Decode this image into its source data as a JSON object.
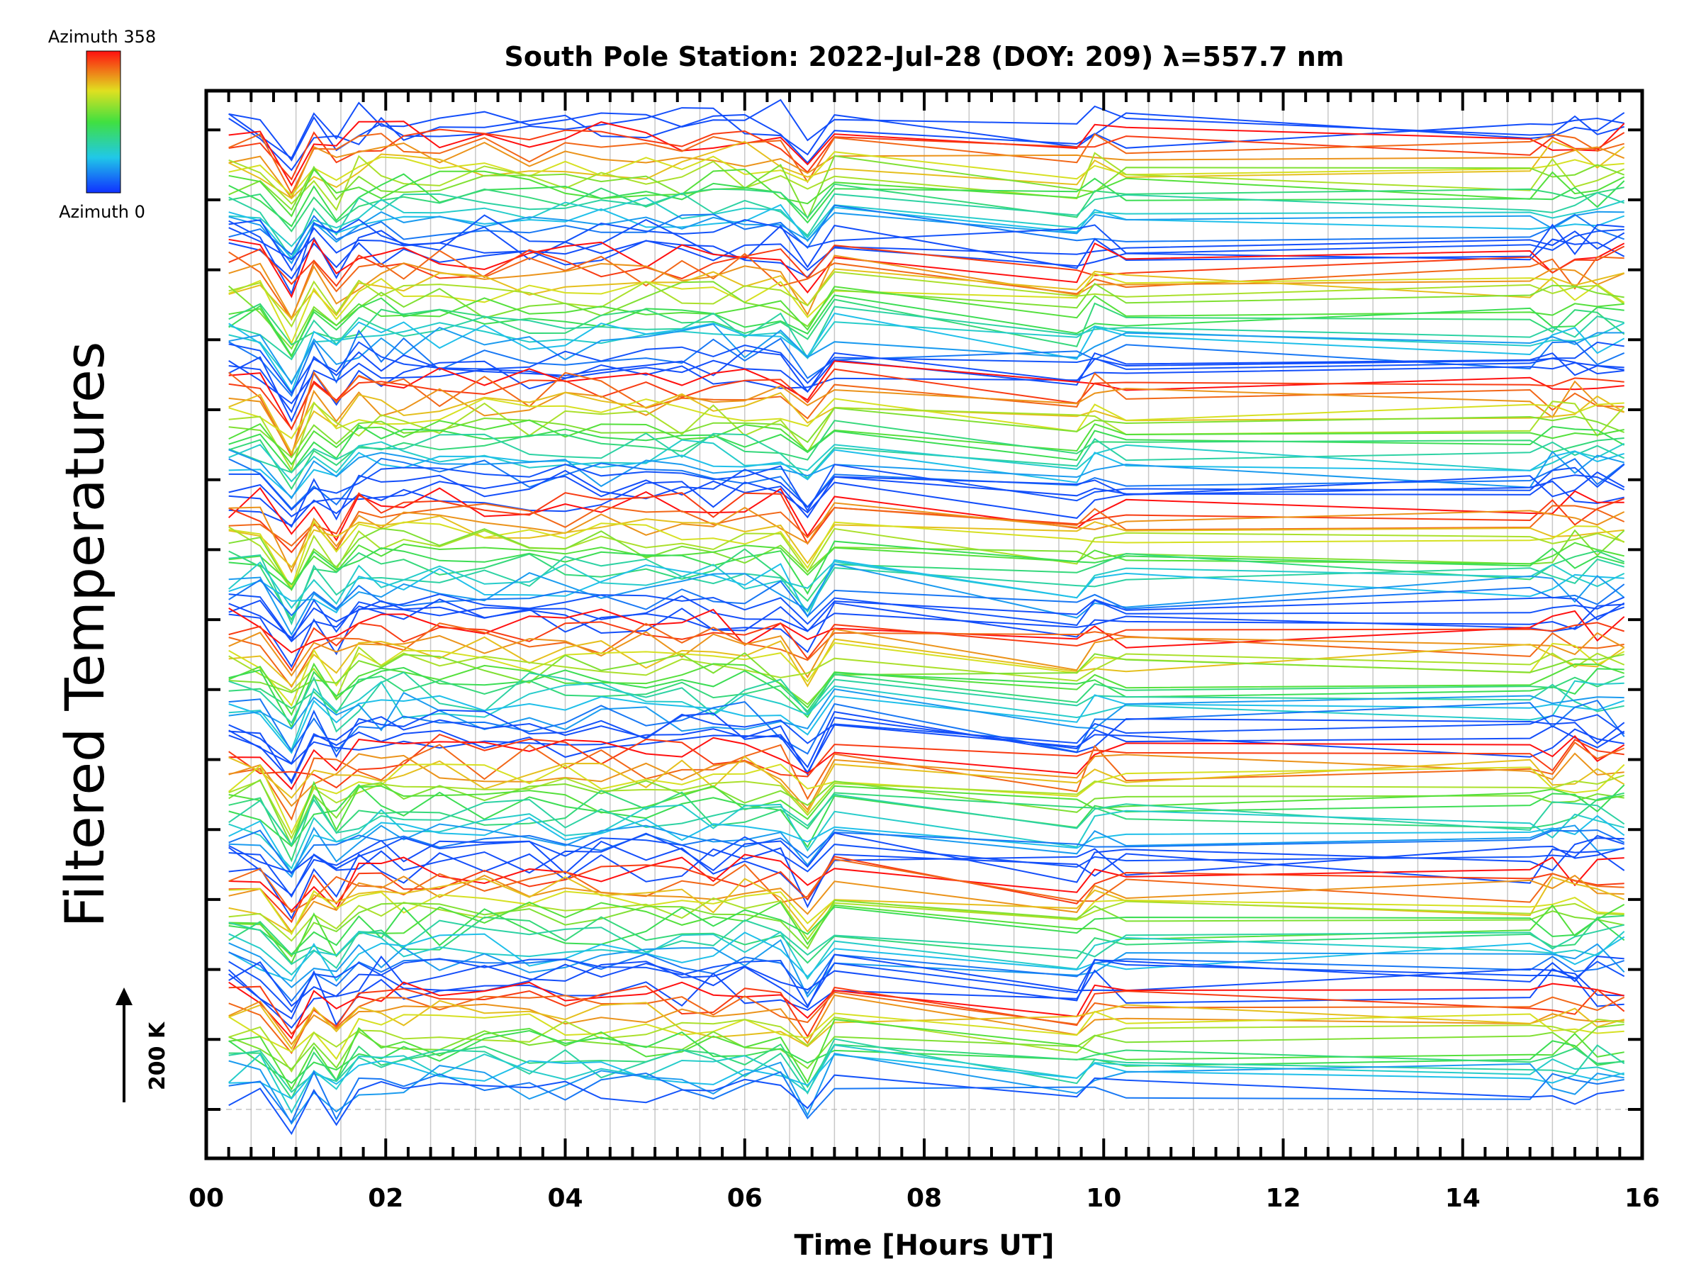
{
  "chart_data": {
    "type": "line",
    "title": "South Pole Station: 2022-Jul-28 (DOY: 209) λ=557.7 nm",
    "xlabel": "Time [Hours UT]",
    "ylabel": "Filtered Temperatures",
    "xlim": [
      0,
      16
    ],
    "x_ticks": [
      "00",
      "02",
      "04",
      "06",
      "08",
      "10",
      "12",
      "14",
      "16"
    ],
    "scale_bar_label": "200 K",
    "colorbar": {
      "top_label": "Azimuth 358",
      "bottom_label": "Azimuth 0"
    },
    "x": [
      0.25,
      0.6,
      0.95,
      1.2,
      1.45,
      1.7,
      1.95,
      2.2,
      2.6,
      3.1,
      3.6,
      4.0,
      4.4,
      4.9,
      5.3,
      5.65,
      6.0,
      6.4,
      6.7,
      7.0,
      9.7,
      9.9,
      10.25,
      14.75,
      15.0,
      15.25,
      15.5,
      15.8
    ],
    "series_count": 160,
    "groups": 8,
    "colors": {
      "blue": "#1f3cf0",
      "cyan": "#30c8e0",
      "green": "#48d848",
      "yellow": "#d8d820",
      "orange": "#f08020",
      "red": "#f01818",
      "grid": "#c8c8c8",
      "axis": "#000000"
    }
  }
}
